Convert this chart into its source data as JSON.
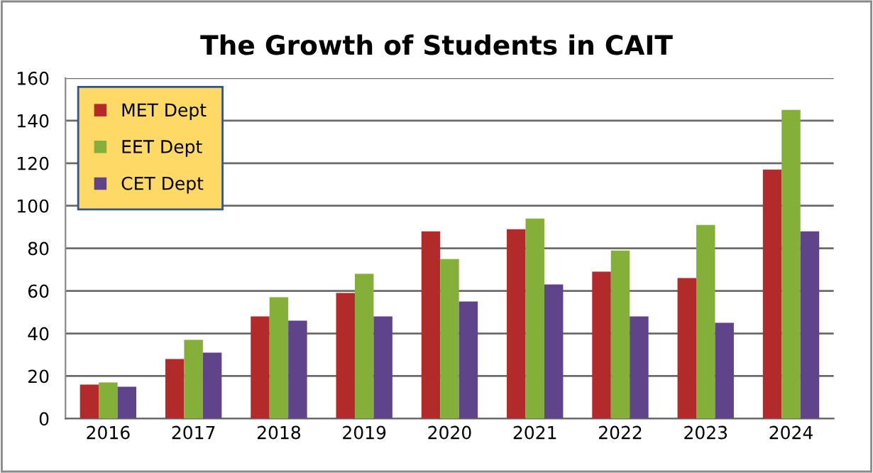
{
  "chart_data": {
    "type": "bar",
    "title": "The Growth of Students in CAIT",
    "categories": [
      "2016",
      "2017",
      "2018",
      "2019",
      "2020",
      "2021",
      "2022",
      "2023",
      "2024"
    ],
    "series": [
      {
        "name": "MET Dept",
        "color": "#b22a2a",
        "values": [
          16,
          28,
          48,
          59,
          88,
          89,
          69,
          66,
          117
        ]
      },
      {
        "name": "EET Dept",
        "color": "#84b03a",
        "values": [
          17,
          37,
          57,
          68,
          75,
          94,
          79,
          91,
          145
        ]
      },
      {
        "name": "CET Dept",
        "color": "#5f448c",
        "values": [
          15,
          31,
          46,
          48,
          55,
          63,
          48,
          45,
          88
        ]
      }
    ],
    "ylim": [
      0,
      160
    ],
    "yticks": [
      0,
      20,
      40,
      60,
      80,
      100,
      120,
      140,
      160
    ],
    "grid": "y",
    "legend": "top left"
  }
}
